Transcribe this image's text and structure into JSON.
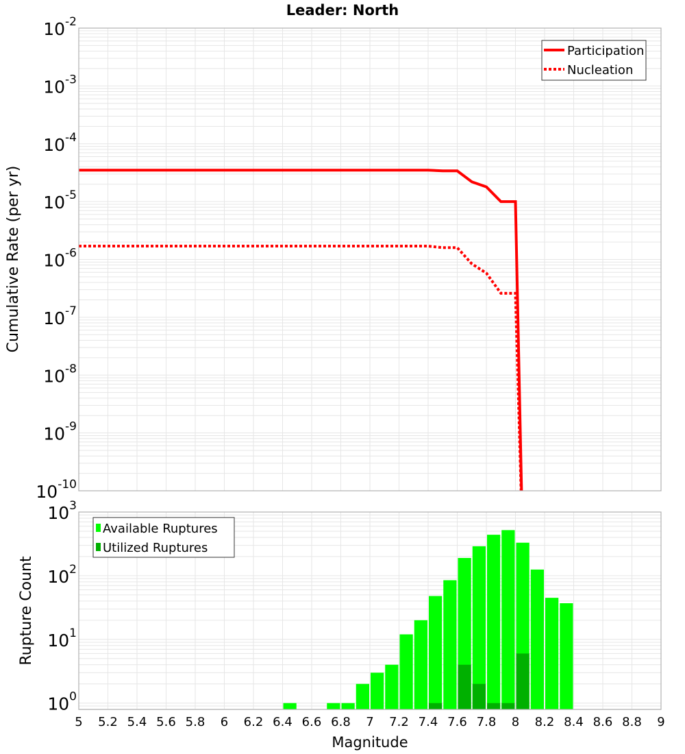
{
  "chart_data": [
    {
      "type": "line",
      "title": "Leader: North",
      "xlabel": "",
      "ylabel": "Cumulative Rate (per yr)",
      "xlim": [
        5,
        9
      ],
      "ylim_log10": [
        -10,
        -2
      ],
      "yscale": "log",
      "ytick_exponents": [
        "-2",
        "-3",
        "-4",
        "-5",
        "-6",
        "-7",
        "-8",
        "-9",
        "-10"
      ],
      "grid": true,
      "legend_position": "top-right",
      "series": [
        {
          "name": "Participation",
          "style": "solid",
          "color": "#ff0000",
          "x": [
            5.0,
            7.4,
            7.5,
            7.6,
            7.7,
            7.8,
            7.9,
            8.0,
            8.05
          ],
          "y": [
            3.5e-05,
            3.5e-05,
            3.4e-05,
            3.4e-05,
            2.2e-05,
            1.8e-05,
            1e-05,
            1e-05,
            1e-11
          ]
        },
        {
          "name": "Nucleation",
          "style": "dotted",
          "color": "#ff0000",
          "x": [
            5.0,
            7.4,
            7.5,
            7.6,
            7.7,
            7.8,
            7.9,
            8.0,
            8.05
          ],
          "y": [
            1.7e-06,
            1.7e-06,
            1.6e-06,
            1.6e-06,
            8.4e-07,
            5.8e-07,
            2.6e-07,
            2.6e-07,
            1e-11
          ]
        }
      ]
    },
    {
      "type": "bar",
      "xlabel": "Magnitude",
      "ylabel": "Rupture Count",
      "xlim": [
        5,
        9
      ],
      "ylim_log10": [
        -0.1,
        3
      ],
      "yscale": "log",
      "ytick_exponents": [
        "3",
        "2",
        "1",
        "0"
      ],
      "xticks": [
        "5",
        "5.2",
        "5.4",
        "5.6",
        "5.8",
        "6",
        "6.2",
        "6.4",
        "6.6",
        "6.8",
        "7",
        "7.2",
        "7.4",
        "7.6",
        "7.8",
        "8",
        "8.2",
        "8.4",
        "8.6",
        "8.8",
        "9"
      ],
      "bin_width": 0.1,
      "legend_position": "top-left",
      "series": [
        {
          "name": "Available Ruptures",
          "color": "#00ff00",
          "x": [
            6.45,
            6.75,
            6.85,
            6.95,
            7.05,
            7.15,
            7.25,
            7.35,
            7.45,
            7.55,
            7.65,
            7.75,
            7.85,
            7.95,
            8.05,
            8.15,
            8.25,
            8.35
          ],
          "values": [
            1,
            1,
            1,
            2,
            3,
            4,
            12,
            20,
            48,
            85,
            190,
            290,
            440,
            520,
            330,
            125,
            45,
            37
          ]
        },
        {
          "name": "Utilized Ruptures",
          "color": "#00b000",
          "x": [
            7.45,
            7.65,
            7.75,
            7.85,
            7.95,
            8.05
          ],
          "values": [
            1,
            4,
            2,
            1,
            1,
            6
          ]
        }
      ]
    }
  ]
}
